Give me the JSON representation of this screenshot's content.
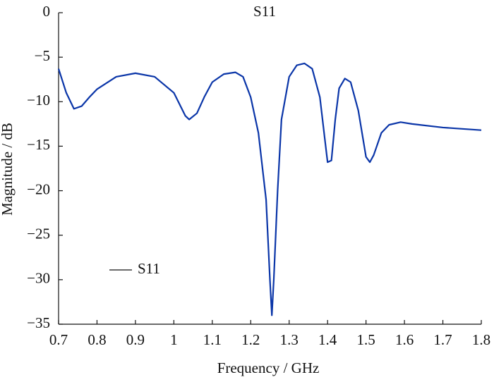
{
  "chart_data": {
    "type": "line",
    "title": "S11",
    "x_label": "Frequency / GHz",
    "y_label": "Magnitude / dB",
    "x": [
      0.7,
      0.72,
      0.74,
      0.76,
      0.78,
      0.8,
      0.85,
      0.9,
      0.95,
      1.0,
      1.03,
      1.04,
      1.06,
      1.08,
      1.1,
      1.13,
      1.16,
      1.18,
      1.2,
      1.22,
      1.24,
      1.25,
      1.255,
      1.26,
      1.27,
      1.28,
      1.3,
      1.32,
      1.34,
      1.36,
      1.38,
      1.395,
      1.4,
      1.41,
      1.42,
      1.43,
      1.445,
      1.46,
      1.48,
      1.5,
      1.51,
      1.52,
      1.54,
      1.56,
      1.59,
      1.62,
      1.7,
      1.8
    ],
    "series": [
      {
        "name": "S11",
        "color": "#0a35a8",
        "values": [
          -6.3,
          -9,
          -10.8,
          -10.5,
          -9.5,
          -8.6,
          -7.2,
          -6.8,
          -7.2,
          -9.0,
          -11.6,
          -12.0,
          -11.3,
          -9.4,
          -7.8,
          -6.9,
          -6.7,
          -7.2,
          -9.5,
          -13.5,
          -21,
          -30,
          -34.0,
          -30,
          -20,
          -12,
          -7.2,
          -5.9,
          -5.7,
          -6.3,
          -9.5,
          -15,
          -16.8,
          -16.6,
          -12,
          -8.5,
          -7.4,
          -7.8,
          -11,
          -16.2,
          -16.8,
          -16,
          -13.5,
          -12.6,
          -12.3,
          -12.5,
          -12.9,
          -13.2
        ]
      }
    ],
    "xlim": [
      0.7,
      1.8
    ],
    "ylim": [
      -35,
      0
    ],
    "xticks": [
      0.7,
      0.8,
      0.9,
      1,
      1.1,
      1.2,
      1.3,
      1.4,
      1.5,
      1.6,
      1.7,
      1.8
    ],
    "yticks": [
      0,
      {
        "value": -5,
        "label": "−5"
      },
      {
        "value": -10,
        "label": "−10"
      },
      {
        "value": -15,
        "label": "−15"
      },
      {
        "value": -20,
        "label": "−20"
      },
      {
        "value": -25,
        "label": "−25"
      },
      {
        "value": -30,
        "label": "−30"
      },
      {
        "value": -35,
        "label": "−35"
      }
    ],
    "grid": false,
    "legend": "lower left"
  }
}
